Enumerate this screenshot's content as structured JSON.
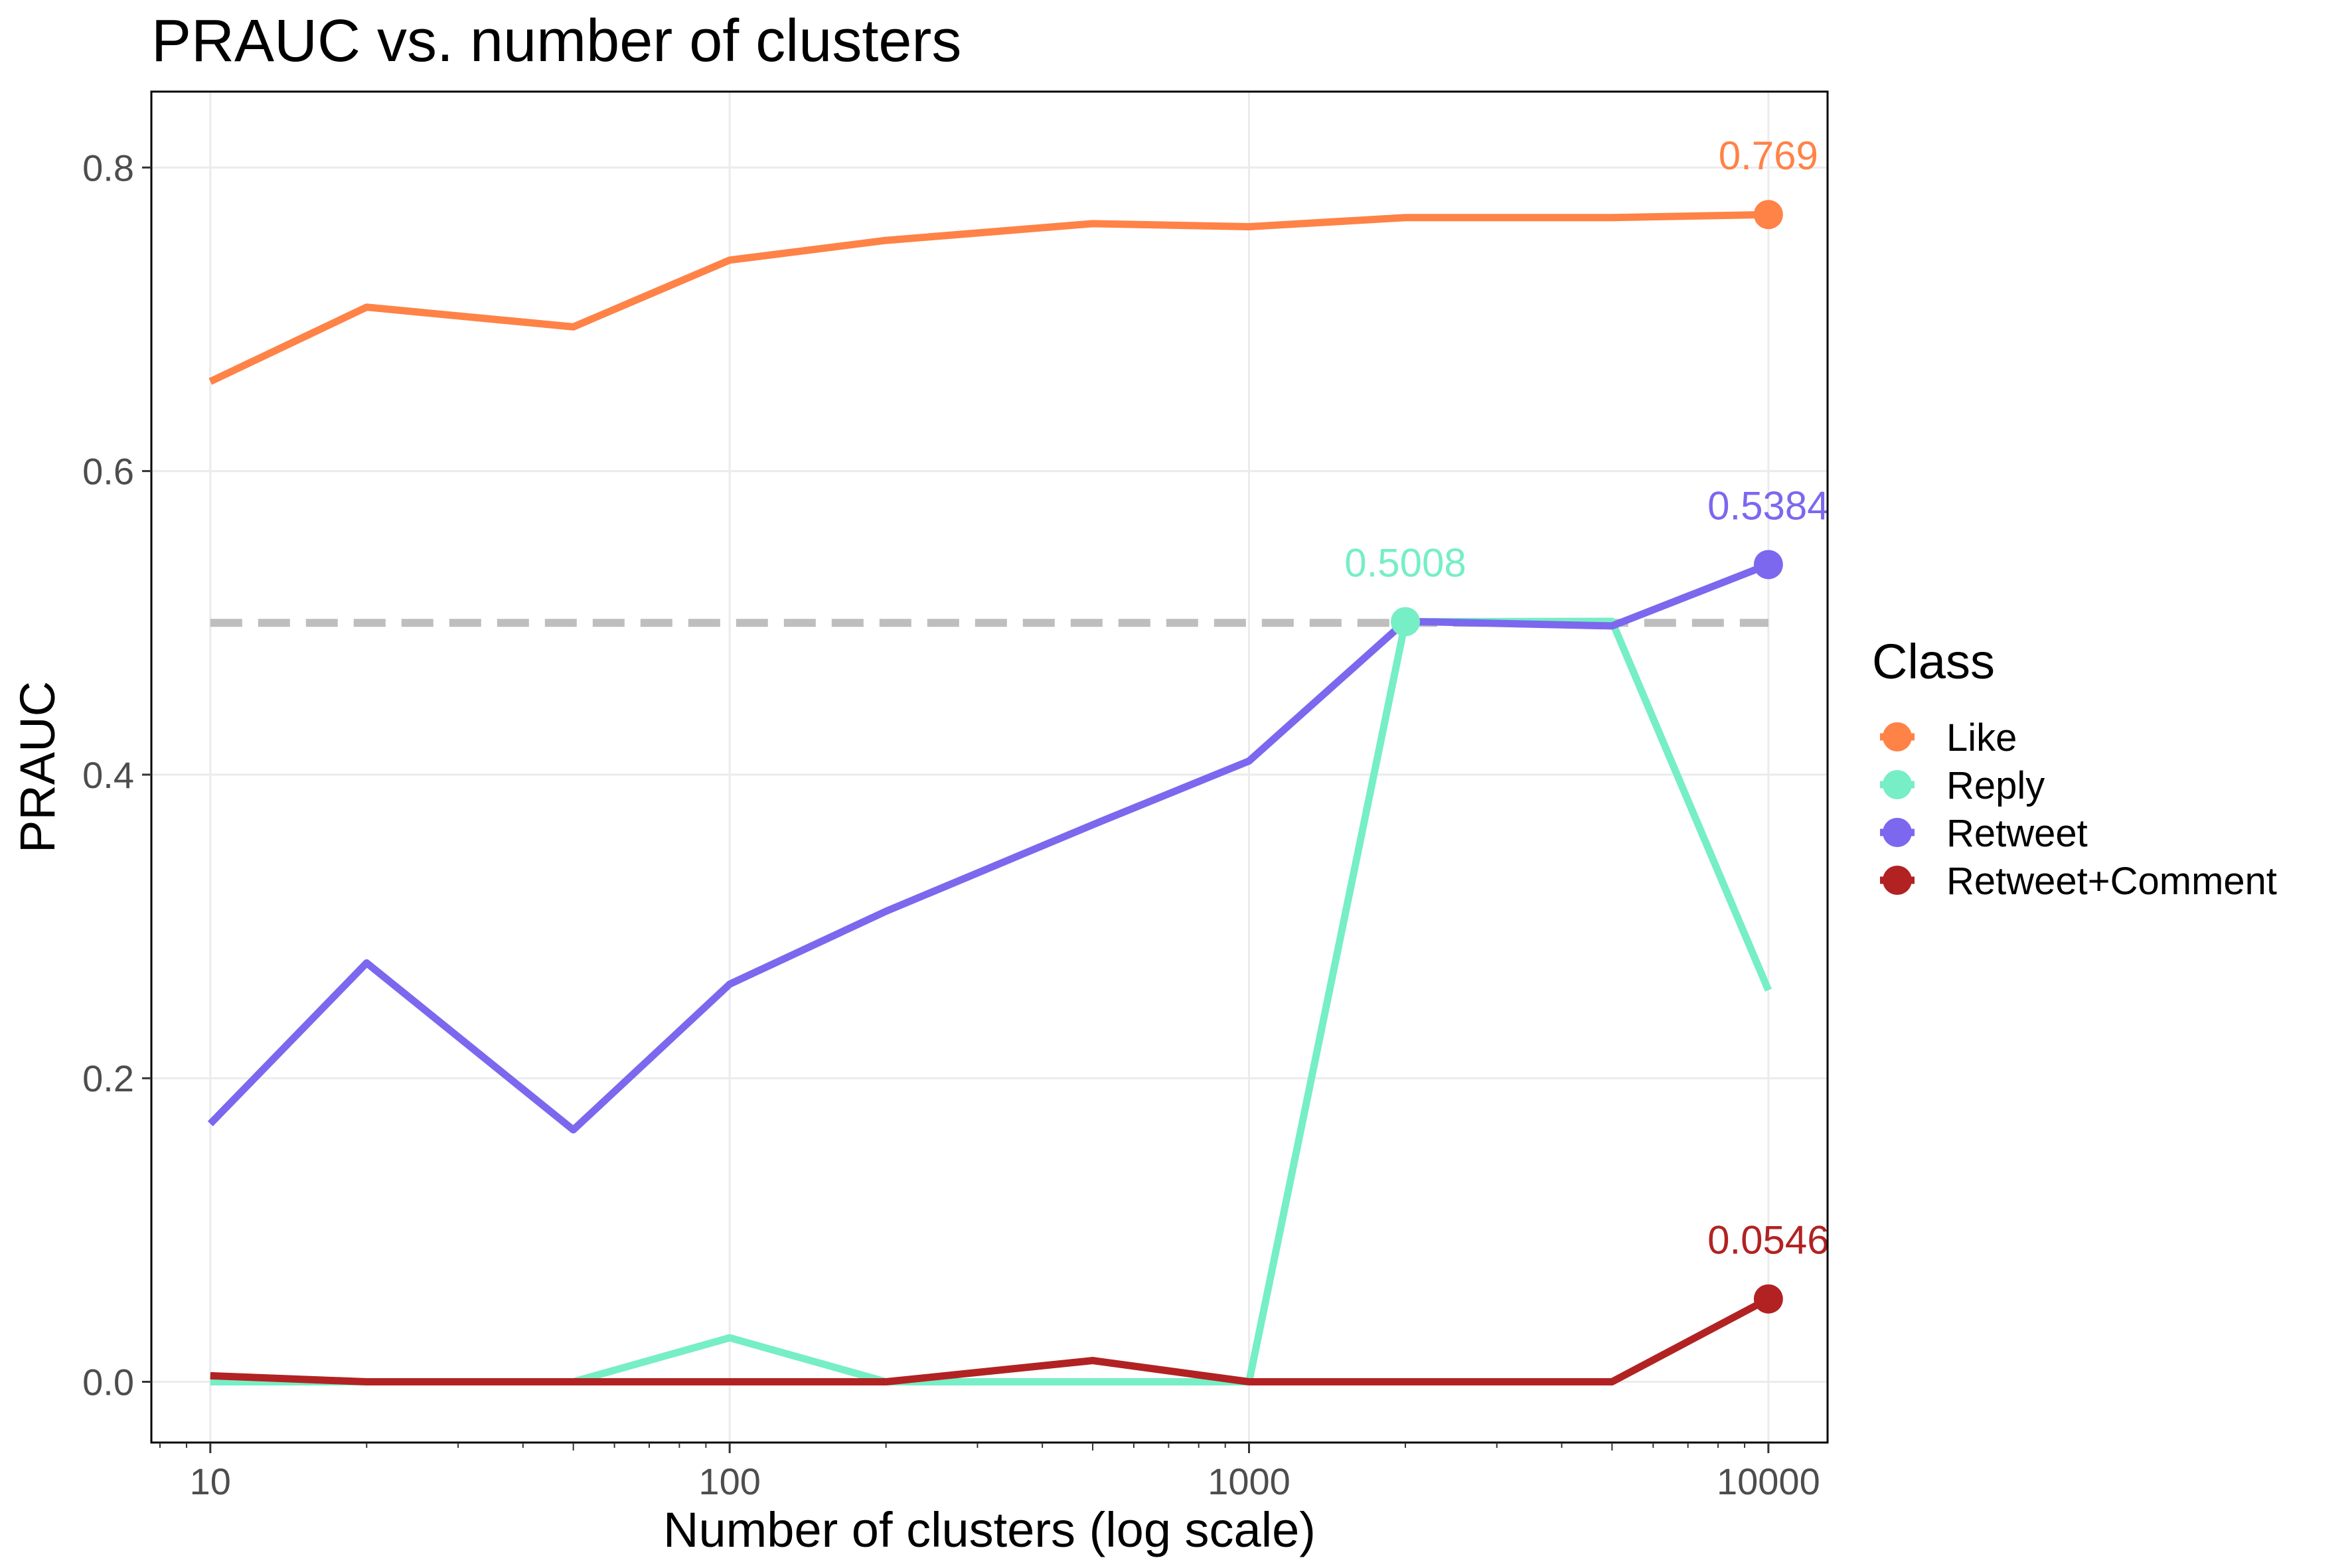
{
  "chart_data": {
    "type": "line",
    "title": "PRAUC vs. number of clusters",
    "xlabel": "Number of clusters (log scale)",
    "ylabel": "PRAUC",
    "x_scale": "log",
    "xlim": [
      7.7,
      13000
    ],
    "ylim": [
      -0.04,
      0.85
    ],
    "x_ticks": [
      10,
      100,
      1000,
      10000
    ],
    "x_tick_labels": [
      "10",
      "100",
      "1000",
      "10000"
    ],
    "y_ticks": [
      0.0,
      0.2,
      0.4,
      0.6,
      0.8
    ],
    "y_tick_labels": [
      "0.0",
      "0.2",
      "0.4",
      "0.6",
      "0.8"
    ],
    "grid": true,
    "reference_line": {
      "y": 0.5,
      "style": "dashed",
      "color": "#bebebe",
      "x_range": [
        10,
        10000
      ]
    },
    "legend": {
      "title": "Class",
      "placement": "right"
    },
    "x": [
      10,
      20,
      50,
      100,
      200,
      500,
      1000,
      2000,
      5000,
      10000
    ],
    "series": [
      {
        "name": "Like",
        "color": "#ff8247",
        "values": [
          0.659,
          0.708,
          0.695,
          0.739,
          0.752,
          0.763,
          0.761,
          0.767,
          0.767,
          0.769
        ]
      },
      {
        "name": "Reply",
        "color": "#76eec6",
        "values": [
          0.0,
          0.0,
          0.0,
          0.029,
          0.0,
          0.0,
          0.0,
          0.5008,
          0.501,
          0.258
        ]
      },
      {
        "name": "Retweet",
        "color": "#7b68ee",
        "values": [
          0.17,
          0.276,
          0.166,
          0.262,
          0.31,
          0.367,
          0.409,
          0.501,
          0.498,
          0.5384
        ]
      },
      {
        "name": "Retweet+Comment",
        "color": "#b22222",
        "values": [
          0.004,
          0.0,
          0.0,
          0.0,
          0.0,
          0.014,
          0.0,
          0.0,
          0.0,
          0.0546
        ]
      }
    ],
    "annotations": [
      {
        "series": "Like",
        "x": 10000,
        "y": 0.769,
        "text": "0.769"
      },
      {
        "series": "Reply",
        "x": 2000,
        "y": 0.5008,
        "text": "0.5008"
      },
      {
        "series": "Retweet",
        "x": 10000,
        "y": 0.5384,
        "text": "0.5384"
      },
      {
        "series": "Retweet+Comment",
        "x": 10000,
        "y": 0.0546,
        "text": "0.0546"
      }
    ]
  }
}
